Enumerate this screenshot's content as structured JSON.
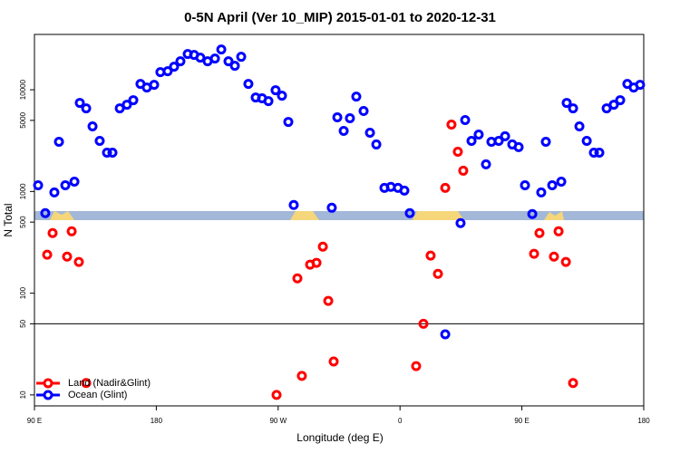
{
  "chart_data": {
    "type": "scatter",
    "title": "0-5N April (Ver 10_MIP)   2015-01-01 to 2020-12-31",
    "x_label": "Longitude (deg E)",
    "y_label": "N Total",
    "log_y": true,
    "legend": "bottom-left",
    "hline": 50,
    "xlim": [
      90,
      540
    ],
    "xticks": [
      {
        "value": 90,
        "label": "90 E"
      },
      180,
      {
        "value": 270,
        "label": "90 W"
      },
      {
        "value": 360,
        "label": "0"
      },
      {
        "value": 450,
        "label": "90 E"
      },
      {
        "value": 540,
        "label": "180"
      }
    ],
    "ylim": [
      7.8,
      35000
    ],
    "yticks": [
      10,
      50,
      100,
      500,
      1000,
      5000,
      10000
    ],
    "series": [
      {
        "name": "Land (Nadir&Glint)",
        "color": "#ff0000",
        "x": [
          99.4,
          103.4,
          114.1,
          117.5,
          122.8,
          128.2,
          268.8,
          284.2,
          287.5,
          293.6,
          298.3,
          303,
          307,
          311,
          371.9,
          377.3,
          382.6,
          388,
          393.4,
          398,
          402.7,
          406.7,
          459,
          463,
          473.7,
          477.1,
          482.5,
          487.8
        ],
        "values": [
          239,
          390,
          229,
          406,
          203,
          13.1,
          10,
          140,
          15.4,
          191,
          199,
          287,
          84,
          21.3,
          19.2,
          50,
          234,
          155,
          1085,
          4550,
          2460,
          1600,
          244,
          390,
          229,
          406,
          203,
          13.1
        ]
      },
      {
        "name": "Ocean (Glint)",
        "color": "#0000ff",
        "x": [
          92.7,
          98,
          104.7,
          108.1,
          112.8,
          119.5,
          123.5,
          128.2,
          132.9,
          138.2,
          143.6,
          147.6,
          153,
          158.3,
          163,
          168.3,
          173,
          178.4,
          183,
          188.4,
          193.1,
          197.8,
          203.2,
          207.9,
          212.5,
          217.9,
          223.3,
          228,
          233.3,
          238,
          242.7,
          248,
          253.4,
          258.1,
          262.8,
          268.1,
          272.8,
          277.5,
          281.5,
          309.6,
          313.7,
          318.4,
          323,
          327.7,
          333.1,
          337.8,
          342.5,
          348.5,
          353.2,
          358.5,
          363.2,
          367.2,
          393.4,
          404.7,
          408.1,
          412.8,
          418.1,
          423.5,
          427.5,
          432.9,
          437.6,
          442.9,
          447.6,
          452.3,
          457.7,
          464.3,
          467.7,
          472.4,
          479.1,
          483.1,
          487.8,
          492.5,
          497.9,
          503.2,
          507.2,
          512.6,
          517.9,
          522.6,
          527.9,
          532.6,
          537.3
        ],
        "values": [
          1150,
          612,
          980,
          3080,
          1150,
          1250,
          7430,
          6570,
          4365,
          3145,
          2410,
          2410,
          6570,
          7130,
          7900,
          11420,
          10520,
          11190,
          14900,
          15210,
          16860,
          19050,
          22450,
          21990,
          20690,
          19050,
          20270,
          24880,
          19050,
          17210,
          21100,
          11420,
          8400,
          8240,
          7740,
          9900,
          8750,
          4830,
          736,
          692,
          5360,
          3940,
          5250,
          8570,
          6180,
          3780,
          2900,
          1085,
          1110,
          1085,
          1020,
          612,
          39.4,
          489,
          5040,
          3145,
          3630,
          1850,
          3080,
          3145,
          3490,
          2900,
          2730,
          1150,
          600,
          980,
          3080,
          1150,
          1250,
          7430,
          6570,
          4365,
          3145,
          2410,
          2410,
          6570,
          7130,
          7900,
          11420,
          10520,
          11190
        ]
      }
    ]
  }
}
